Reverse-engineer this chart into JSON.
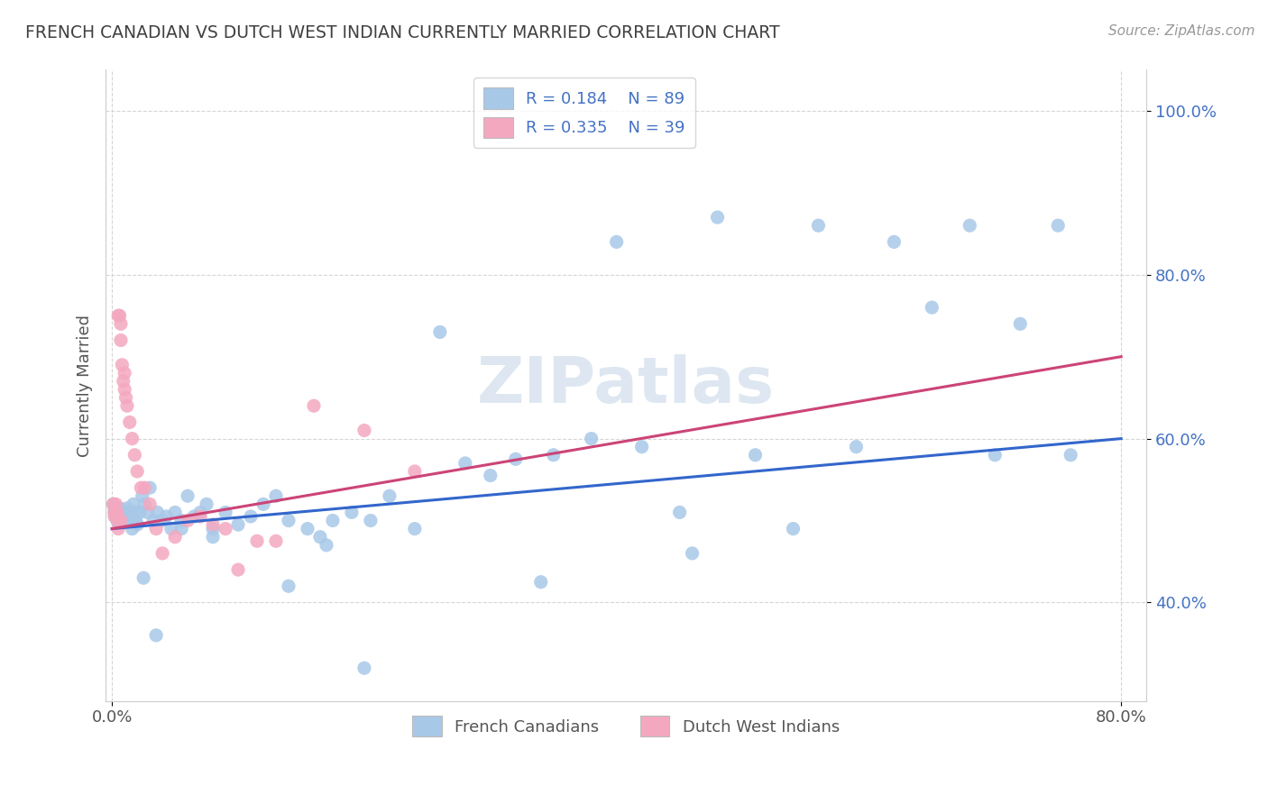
{
  "title": "FRENCH CANADIAN VS DUTCH WEST INDIAN CURRENTLY MARRIED CORRELATION CHART",
  "source_text": "Source: ZipAtlas.com",
  "ylabel": "Currently Married",
  "xlim": [
    -0.005,
    0.82
  ],
  "ylim": [
    0.28,
    1.05
  ],
  "x_ticks": [
    0.0,
    0.8
  ],
  "x_tick_labels": [
    "0.0%",
    "80.0%"
  ],
  "y_ticks": [
    0.4,
    0.6,
    0.8,
    1.0
  ],
  "y_tick_labels": [
    "40.0%",
    "60.0%",
    "80.0%",
    "100.0%"
  ],
  "blue_color": "#A8C8E8",
  "pink_color": "#F4A8C0",
  "blue_line_color": "#3366CC",
  "pink_line_color": "#CC4477",
  "tick_color": "#4472C4",
  "title_color": "#404040",
  "source_color": "#999999",
  "watermark": "ZIPatlas",
  "watermark_color": "#C8D8E8",
  "blue_x": [
    0.001,
    0.002,
    0.002,
    0.003,
    0.003,
    0.004,
    0.004,
    0.005,
    0.005,
    0.006,
    0.006,
    0.007,
    0.007,
    0.008,
    0.008,
    0.009,
    0.01,
    0.01,
    0.011,
    0.012,
    0.012,
    0.013,
    0.014,
    0.015,
    0.016,
    0.017,
    0.018,
    0.019,
    0.02,
    0.022,
    0.024,
    0.026,
    0.028,
    0.03,
    0.033,
    0.036,
    0.04,
    0.043,
    0.047,
    0.05,
    0.055,
    0.06,
    0.065,
    0.07,
    0.075,
    0.08,
    0.09,
    0.1,
    0.11,
    0.12,
    0.13,
    0.14,
    0.155,
    0.165,
    0.175,
    0.19,
    0.205,
    0.22,
    0.24,
    0.26,
    0.28,
    0.3,
    0.32,
    0.35,
    0.38,
    0.4,
    0.42,
    0.45,
    0.48,
    0.51,
    0.54,
    0.56,
    0.59,
    0.62,
    0.65,
    0.68,
    0.7,
    0.72,
    0.75,
    0.76,
    0.34,
    0.46,
    0.2,
    0.17,
    0.14,
    0.08,
    0.055,
    0.035,
    0.025
  ],
  "blue_y": [
    0.52,
    0.515,
    0.51,
    0.51,
    0.505,
    0.51,
    0.5,
    0.505,
    0.5,
    0.515,
    0.505,
    0.51,
    0.5,
    0.51,
    0.505,
    0.51,
    0.51,
    0.5,
    0.505,
    0.5,
    0.515,
    0.51,
    0.505,
    0.51,
    0.49,
    0.52,
    0.51,
    0.5,
    0.495,
    0.51,
    0.53,
    0.52,
    0.51,
    0.54,
    0.5,
    0.51,
    0.5,
    0.505,
    0.49,
    0.51,
    0.5,
    0.53,
    0.505,
    0.51,
    0.52,
    0.49,
    0.51,
    0.495,
    0.505,
    0.52,
    0.53,
    0.5,
    0.49,
    0.48,
    0.5,
    0.51,
    0.5,
    0.53,
    0.49,
    0.73,
    0.57,
    0.555,
    0.575,
    0.58,
    0.6,
    0.84,
    0.59,
    0.51,
    0.87,
    0.58,
    0.49,
    0.86,
    0.59,
    0.84,
    0.76,
    0.86,
    0.58,
    0.74,
    0.86,
    0.58,
    0.425,
    0.46,
    0.32,
    0.47,
    0.42,
    0.48,
    0.49,
    0.36,
    0.43
  ],
  "pink_x": [
    0.001,
    0.002,
    0.002,
    0.003,
    0.003,
    0.004,
    0.005,
    0.005,
    0.006,
    0.007,
    0.007,
    0.008,
    0.009,
    0.01,
    0.011,
    0.012,
    0.014,
    0.016,
    0.018,
    0.02,
    0.023,
    0.026,
    0.03,
    0.035,
    0.04,
    0.05,
    0.06,
    0.07,
    0.08,
    0.09,
    0.1,
    0.115,
    0.13,
    0.16,
    0.2,
    0.24,
    0.01,
    0.007,
    0.005
  ],
  "pink_y": [
    0.52,
    0.51,
    0.505,
    0.51,
    0.52,
    0.51,
    0.5,
    0.49,
    0.75,
    0.72,
    0.5,
    0.69,
    0.67,
    0.66,
    0.65,
    0.64,
    0.62,
    0.6,
    0.58,
    0.56,
    0.54,
    0.54,
    0.52,
    0.49,
    0.46,
    0.48,
    0.5,
    0.505,
    0.495,
    0.49,
    0.44,
    0.475,
    0.475,
    0.64,
    0.61,
    0.56,
    0.68,
    0.74,
    0.75
  ],
  "blue_line_x": [
    0.0,
    0.8
  ],
  "blue_line_y": [
    0.49,
    0.6
  ],
  "pink_line_x": [
    0.0,
    0.8
  ],
  "pink_line_y": [
    0.49,
    0.7
  ]
}
